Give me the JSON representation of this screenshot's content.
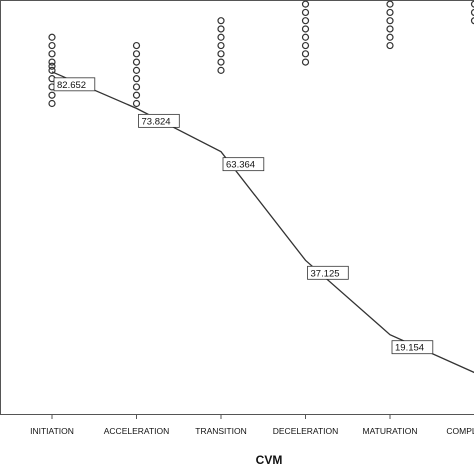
{
  "chart_data": {
    "type": "scatter",
    "xlabel": "CVM",
    "title": "",
    "ylabel": "",
    "categories": [
      "INITIATION",
      "ACCELERATION",
      "TRANSITION",
      "DECELERATION",
      "MATURATION",
      "COMPLETION"
    ],
    "ylim": [
      0,
      100
    ],
    "grid": false,
    "series": [
      {
        "type": "scatter",
        "points": [
          {
            "x": "INITIATION",
            "y": 91
          },
          {
            "x": "INITIATION",
            "y": 89
          },
          {
            "x": "INITIATION",
            "y": 87
          },
          {
            "x": "INITIATION",
            "y": 85
          },
          {
            "x": "INITIATION",
            "y": 84
          },
          {
            "x": "INITIATION",
            "y": 83
          },
          {
            "x": "INITIATION",
            "y": 81
          },
          {
            "x": "INITIATION",
            "y": 79
          },
          {
            "x": "INITIATION",
            "y": 77
          },
          {
            "x": "INITIATION",
            "y": 75
          },
          {
            "x": "ACCELERATION",
            "y": 89
          },
          {
            "x": "ACCELERATION",
            "y": 87
          },
          {
            "x": "ACCELERATION",
            "y": 85
          },
          {
            "x": "ACCELERATION",
            "y": 83
          },
          {
            "x": "ACCELERATION",
            "y": 81
          },
          {
            "x": "ACCELERATION",
            "y": 79
          },
          {
            "x": "ACCELERATION",
            "y": 77
          },
          {
            "x": "ACCELERATION",
            "y": 75
          },
          {
            "x": "TRANSITION",
            "y": 95
          },
          {
            "x": "TRANSITION",
            "y": 93
          },
          {
            "x": "TRANSITION",
            "y": 91
          },
          {
            "x": "TRANSITION",
            "y": 89
          },
          {
            "x": "TRANSITION",
            "y": 87
          },
          {
            "x": "TRANSITION",
            "y": 85
          },
          {
            "x": "TRANSITION",
            "y": 83
          },
          {
            "x": "DECELERATION",
            "y": 99
          },
          {
            "x": "DECELERATION",
            "y": 97
          },
          {
            "x": "DECELERATION",
            "y": 95
          },
          {
            "x": "DECELERATION",
            "y": 93
          },
          {
            "x": "DECELERATION",
            "y": 91
          },
          {
            "x": "DECELERATION",
            "y": 89
          },
          {
            "x": "DECELERATION",
            "y": 87
          },
          {
            "x": "DECELERATION",
            "y": 85
          },
          {
            "x": "MATURATION",
            "y": 99
          },
          {
            "x": "MATURATION",
            "y": 97
          },
          {
            "x": "MATURATION",
            "y": 95
          },
          {
            "x": "MATURATION",
            "y": 93
          },
          {
            "x": "MATURATION",
            "y": 91
          },
          {
            "x": "MATURATION",
            "y": 89
          },
          {
            "x": "COMPLETION",
            "y": 99
          },
          {
            "x": "COMPLETION",
            "y": 97
          },
          {
            "x": "COMPLETION",
            "y": 95
          }
        ]
      },
      {
        "type": "line",
        "values": [
          82.652,
          73.824,
          63.364,
          37.125,
          19.154,
          10
        ],
        "labels": [
          "82.652",
          "73.824",
          "63.364",
          "37.125",
          "19.154",
          ""
        ]
      }
    ]
  }
}
